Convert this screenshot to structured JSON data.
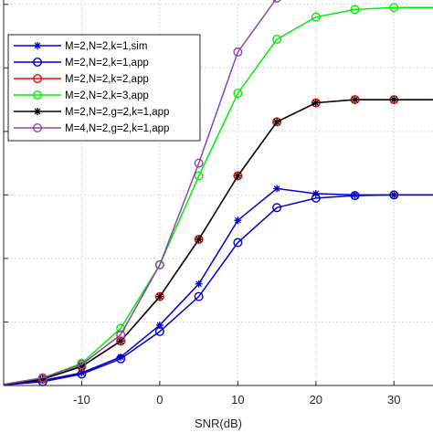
{
  "chart_data": {
    "type": "line",
    "title": "",
    "xlabel": "SNR(dB)",
    "ylabel": "",
    "x_ticks": [
      -10,
      0,
      10,
      20,
      30
    ],
    "x_tick_labels": [
      "-10",
      "0",
      "10",
      "20",
      "30"
    ],
    "xlim": [
      -20,
      35
    ],
    "ylim": [
      0,
      6.5
    ],
    "y_grid_values": [
      1,
      2,
      3,
      4,
      5,
      6
    ],
    "grid": true,
    "legend_position": "top-left",
    "x": [
      -15,
      -10,
      -5,
      0,
      5,
      10,
      15,
      20,
      25,
      30,
      35
    ],
    "series": [
      {
        "name": "M=2,N=2,k=1,sim",
        "color": "#0000cc",
        "marker": "star",
        "values": [
          0.08,
          0.2,
          0.45,
          0.95,
          1.6,
          2.6,
          3.1,
          3.02,
          3.0,
          3.0,
          3.0
        ]
      },
      {
        "name": "M=2,N=2,k=1,app",
        "color": "#0000cc",
        "marker": "circle",
        "values": [
          0.06,
          0.18,
          0.42,
          0.85,
          1.4,
          2.25,
          2.8,
          2.95,
          2.99,
          3.0,
          3.0
        ]
      },
      {
        "name": "M=2,N=2,k=2,app",
        "color": "#ff0000",
        "marker": "circle",
        "values": [
          0.1,
          0.3,
          0.7,
          1.4,
          2.3,
          3.3,
          4.15,
          4.45,
          4.5,
          4.5,
          4.5
        ]
      },
      {
        "name": "M=2,N=2,k=3,app",
        "color": "#00ee00",
        "marker": "circle",
        "values": [
          0.12,
          0.35,
          0.9,
          1.9,
          3.3,
          4.6,
          5.45,
          5.8,
          5.92,
          5.95,
          5.95
        ]
      },
      {
        "name": "M=2,N=2,g=2,k=1,app",
        "color": "#000000",
        "marker": "star",
        "values": [
          0.1,
          0.3,
          0.7,
          1.4,
          2.3,
          3.3,
          4.15,
          4.45,
          4.5,
          4.5,
          4.5
        ]
      },
      {
        "name": "M=4,N=2,g=2,k=1,app",
        "color": "#8e44ad",
        "marker": "circle",
        "values": [
          0.12,
          0.33,
          0.8,
          1.9,
          3.5,
          5.25,
          6.1,
          6.45,
          6.55,
          6.58,
          6.58
        ]
      }
    ]
  }
}
